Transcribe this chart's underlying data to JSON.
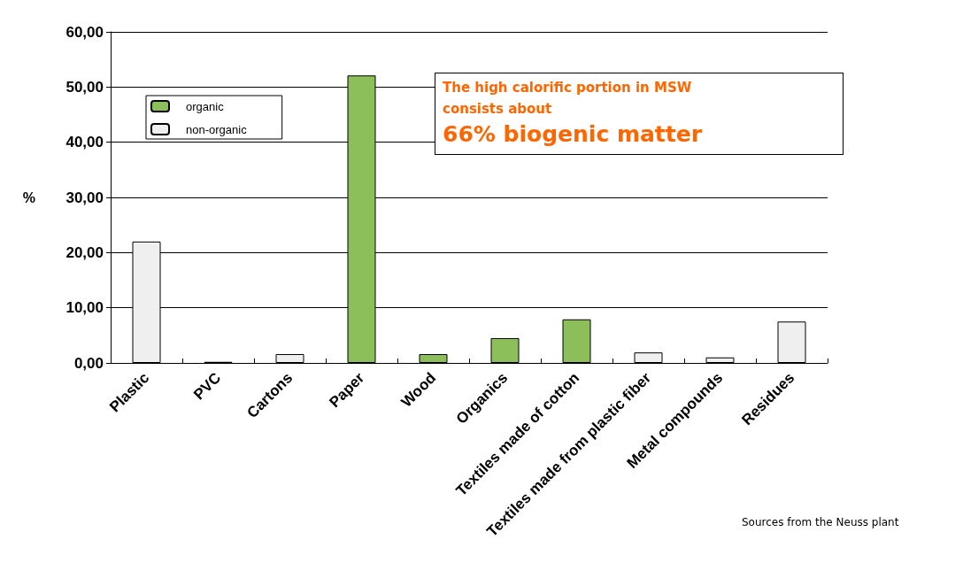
{
  "chart_data": {
    "type": "bar",
    "ylabel": "%",
    "categories": [
      "Plastic",
      "PVC",
      "Cartons",
      "Paper",
      "Wood",
      "Organics",
      "Textiles made of cotton",
      "Textiles made from plastic fiber",
      "Metal compounds",
      "Residues"
    ],
    "series": [
      {
        "name": "organic",
        "color": "#8cbf5a",
        "values": [
          null,
          null,
          null,
          52.1,
          1.6,
          4.5,
          7.9,
          null,
          null,
          null
        ]
      },
      {
        "name": "non-organic",
        "color": "#efefef",
        "values": [
          22.0,
          0.2,
          1.6,
          null,
          null,
          null,
          null,
          1.9,
          1.0,
          7.5
        ]
      }
    ],
    "ylim": [
      0,
      60
    ],
    "yticks": [
      {
        "value": 0,
        "label": "0,00"
      },
      {
        "value": 10,
        "label": "10,00"
      },
      {
        "value": 20,
        "label": "20,00"
      },
      {
        "value": 30,
        "label": "30,00"
      },
      {
        "value": 40,
        "label": "40,00"
      },
      {
        "value": 50,
        "label": "50,00"
      },
      {
        "value": 60,
        "label": "60,00"
      }
    ],
    "grid": "y",
    "legend": "top left",
    "annotations": [
      "The high calorific portion in MSW consists about",
      "66% biogenic matter",
      "Sources from the Neuss plant"
    ]
  }
}
